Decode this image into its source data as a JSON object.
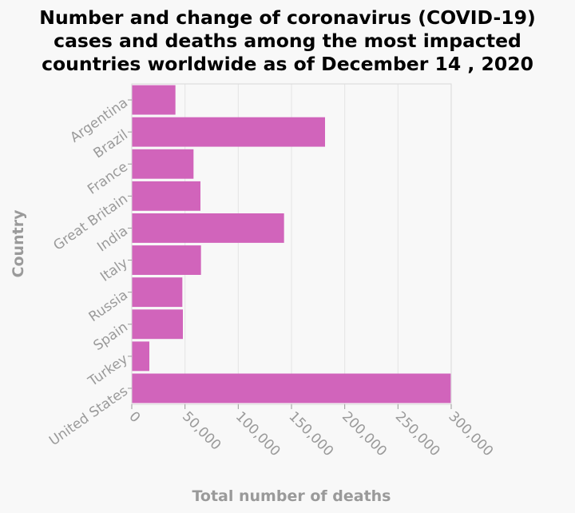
{
  "chart_data": {
    "type": "bar",
    "orientation": "horizontal",
    "title": "Number and change of coronavirus (COVID-19) cases and deaths among the most impacted countries worldwide as of December 14 , 2020",
    "title_lines": [
      "Number and change of coronavirus (COVID-19)",
      "cases and deaths among the most impacted",
      "countries worldwide as of December 14 , 2020"
    ],
    "xlabel": "Total number of deaths",
    "ylabel": "Country",
    "categories": [
      "Argentina",
      "Brazil",
      "France",
      "Great Britain",
      "India",
      "Italy",
      "Russia",
      "Spain",
      "Turkey",
      "United States"
    ],
    "values": [
      41000,
      181500,
      58000,
      64500,
      143000,
      65000,
      47500,
      48000,
      16500,
      299500
    ],
    "xlim": [
      0,
      300000
    ],
    "xticks": [
      0,
      50000,
      100000,
      150000,
      200000,
      250000,
      300000
    ],
    "xtick_labels": [
      "0",
      "50,000",
      "100,000",
      "150,000",
      "200,000",
      "250,000",
      "300,000"
    ],
    "bar_color": "#d164bb",
    "grid": true
  }
}
